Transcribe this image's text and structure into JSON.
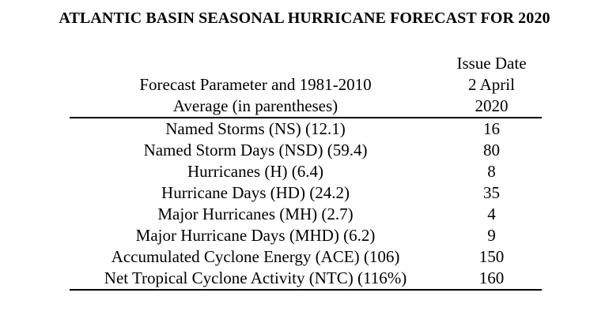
{
  "title": "ATLANTIC BASIN SEASONAL HURRICANE FORECAST FOR 2020",
  "header": {
    "parameter_line1": "Forecast Parameter and 1981-2010",
    "parameter_line2": "Average (in parentheses)",
    "issue_line1": "Issue Date",
    "issue_line2": "2 April",
    "issue_line3": "2020"
  },
  "rows": [
    {
      "parameter": "Named Storms (NS) (12.1)",
      "value": "16"
    },
    {
      "parameter": "Named Storm Days (NSD) (59.4)",
      "value": "80"
    },
    {
      "parameter": "Hurricanes (H) (6.4)",
      "value": "8"
    },
    {
      "parameter": "Hurricane Days (HD) (24.2)",
      "value": "35"
    },
    {
      "parameter": "Major Hurricanes (MH) (2.7)",
      "value": "4"
    },
    {
      "parameter": "Major Hurricane Days (MHD) (6.2)",
      "value": "9"
    },
    {
      "parameter": "Accumulated Cyclone Energy (ACE) (106)",
      "value": "150"
    },
    {
      "parameter": "Net Tropical Cyclone Activity (NTC) (116%)",
      "value": "160"
    }
  ]
}
